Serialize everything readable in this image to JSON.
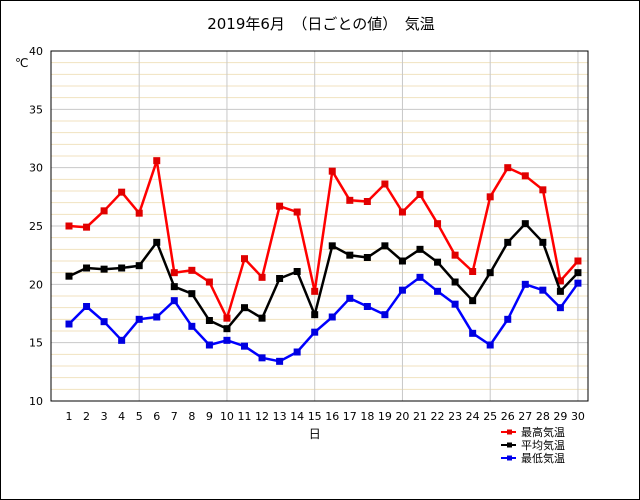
{
  "chart_data": {
    "type": "line",
    "title": "2019年6月　（日ごとの値）　気温",
    "xlabel": "日",
    "ylabel": "℃",
    "ylim": [
      10,
      40
    ],
    "yticks": [
      10,
      15,
      20,
      25,
      30,
      35,
      40
    ],
    "y_minor_step": 1,
    "grid": true,
    "legend_position": "bottom-right",
    "categories": [
      "1",
      "2",
      "3",
      "4",
      "5",
      "6",
      "7",
      "8",
      "9",
      "10",
      "11",
      "12",
      "13",
      "14",
      "15",
      "16",
      "17",
      "18",
      "19",
      "20",
      "21",
      "22",
      "23",
      "24",
      "25",
      "26",
      "27",
      "28",
      "29",
      "30"
    ],
    "series": [
      {
        "name": "最高気温",
        "color": "#ff0000",
        "marker_color": "#e00000",
        "values": [
          25.0,
          24.9,
          26.3,
          27.9,
          26.1,
          30.6,
          21.0,
          21.2,
          20.2,
          17.1,
          22.2,
          20.6,
          26.7,
          26.2,
          19.4,
          29.7,
          27.2,
          27.1,
          28.6,
          26.2,
          27.7,
          25.2,
          22.5,
          21.1,
          27.5,
          30.0,
          29.3,
          28.1,
          20.3,
          22.0
        ]
      },
      {
        "name": "平均気温",
        "color": "#000000",
        "marker_color": "#000000",
        "values": [
          20.7,
          21.4,
          21.3,
          21.4,
          21.6,
          23.6,
          19.8,
          19.2,
          16.9,
          16.2,
          18.0,
          17.1,
          20.5,
          21.1,
          17.4,
          23.3,
          22.5,
          22.3,
          23.3,
          22.0,
          23.0,
          21.9,
          20.2,
          18.6,
          21.0,
          23.6,
          25.2,
          23.6,
          19.4,
          21.0
        ]
      },
      {
        "name": "最低気温",
        "color": "#0000ff",
        "marker_color": "#0000e0",
        "values": [
          16.6,
          18.1,
          16.8,
          15.2,
          17.0,
          17.2,
          18.6,
          16.4,
          14.8,
          15.2,
          14.7,
          13.7,
          13.4,
          14.2,
          15.9,
          17.2,
          18.8,
          18.1,
          17.4,
          19.5,
          20.6,
          19.4,
          18.3,
          15.8,
          14.8,
          17.0,
          20.0,
          19.5,
          18.0,
          20.1
        ]
      }
    ]
  }
}
